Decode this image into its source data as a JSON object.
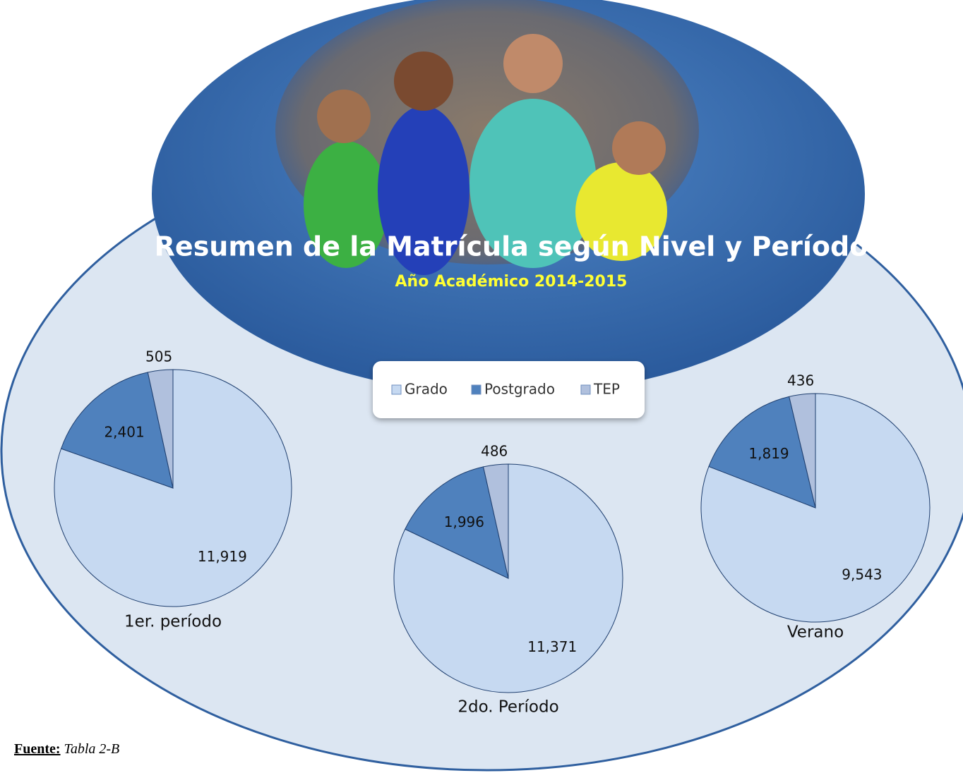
{
  "title": "Resumen de la Matrícula según Nivel y Período",
  "subtitle": "Año Académico 2014-2015",
  "source": {
    "label": "Fuente:",
    "text": "Tabla 2-B"
  },
  "chart_data": {
    "type": "pie",
    "categories": [
      "Grado",
      "Postgrado",
      "TEP"
    ],
    "colors": [
      "#c6d9f1",
      "#4f81bd",
      "#b0c0dd"
    ],
    "series": [
      {
        "name": "1er. período",
        "values": [
          11919,
          2401,
          505
        ],
        "value_labels": [
          "11,919",
          "2,401",
          "505"
        ]
      },
      {
        "name": "2do. Período",
        "values": [
          11371,
          1996,
          486
        ],
        "value_labels": [
          "11,371",
          "1,996",
          "486"
        ]
      },
      {
        "name": "Verano",
        "values": [
          9543,
          1819,
          436
        ],
        "value_labels": [
          "9,543",
          "1,819",
          "436"
        ]
      }
    ]
  }
}
